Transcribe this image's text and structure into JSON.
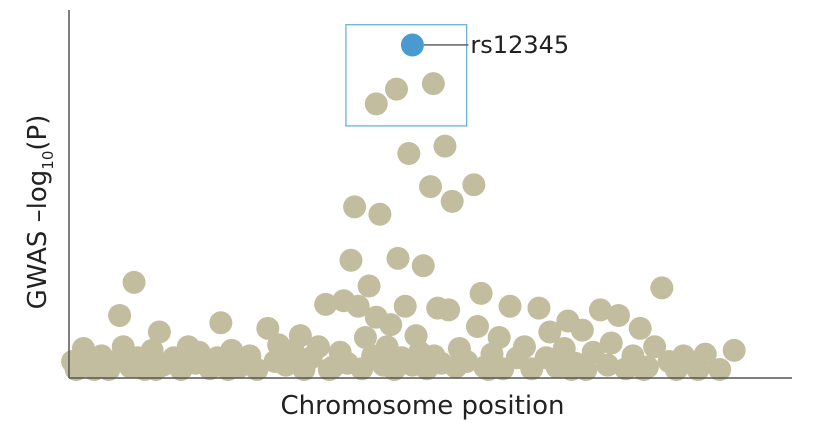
{
  "chart_data": {
    "type": "scatter",
    "xlabel": "Chromosome position",
    "ylabel": {
      "prefix": "GWAS –log",
      "subscript": "10",
      "suffix": "(P)"
    },
    "xlim": [
      0,
      100
    ],
    "ylim": [
      0,
      10
    ],
    "grid": false,
    "colors": {
      "points": "#c2bd9f",
      "highlight": "#4a9ad2",
      "box": "#6ab2d6",
      "axis": "#555555"
    },
    "highlight": {
      "label": "rs12345",
      "x": 47.5,
      "y": 9.05
    },
    "highlight_box": {
      "x0": 38.3,
      "x1": 55.0,
      "y0": 6.85,
      "y1": 9.6
    },
    "points": [
      {
        "x": 1,
        "y": 0.2
      },
      {
        "x": 2,
        "y": 0.8
      },
      {
        "x": 3,
        "y": 0.35
      },
      {
        "x": 4.5,
        "y": 0.6
      },
      {
        "x": 5.5,
        "y": 0.15
      },
      {
        "x": 6.5,
        "y": 0.45
      },
      {
        "x": 7,
        "y": 1.7
      },
      {
        "x": 7.5,
        "y": 0.85
      },
      {
        "x": 8.5,
        "y": 0.3
      },
      {
        "x": 9,
        "y": 2.6
      },
      {
        "x": 9.5,
        "y": 0.55
      },
      {
        "x": 10.5,
        "y": 0.2
      },
      {
        "x": 11.5,
        "y": 0.75
      },
      {
        "x": 12.5,
        "y": 1.25
      },
      {
        "x": 13,
        "y": 0.35
      },
      {
        "x": 14.5,
        "y": 0.55
      },
      {
        "x": 15.5,
        "y": 0.2
      },
      {
        "x": 16.5,
        "y": 0.85
      },
      {
        "x": 17.5,
        "y": 0.4
      },
      {
        "x": 18,
        "y": 0.7
      },
      {
        "x": 19.5,
        "y": 0.25
      },
      {
        "x": 20.5,
        "y": 0.55
      },
      {
        "x": 21,
        "y": 1.5
      },
      {
        "x": 22.5,
        "y": 0.75
      },
      {
        "x": 23.5,
        "y": 0.3
      },
      {
        "x": 25,
        "y": 0.6
      },
      {
        "x": 26,
        "y": 0.2
      },
      {
        "x": 27.5,
        "y": 1.35
      },
      {
        "x": 28.5,
        "y": 0.45
      },
      {
        "x": 29,
        "y": 0.9
      },
      {
        "x": 30,
        "y": 0.35
      },
      {
        "x": 31,
        "y": 0.75
      },
      {
        "x": 32,
        "y": 1.15
      },
      {
        "x": 32.5,
        "y": 0.2
      },
      {
        "x": 33.5,
        "y": 0.55
      },
      {
        "x": 34.5,
        "y": 0.85
      },
      {
        "x": 35.5,
        "y": 2.0
      },
      {
        "x": 36.5,
        "y": 0.3
      },
      {
        "x": 37.5,
        "y": 0.7
      },
      {
        "x": 38,
        "y": 2.1
      },
      {
        "x": 38.5,
        "y": 0.4
      },
      {
        "x": 39,
        "y": 3.2
      },
      {
        "x": 39.5,
        "y": 4.65
      },
      {
        "x": 40,
        "y": 1.95
      },
      {
        "x": 40.5,
        "y": 0.25
      },
      {
        "x": 41,
        "y": 1.1
      },
      {
        "x": 41.5,
        "y": 2.5
      },
      {
        "x": 42,
        "y": 0.6
      },
      {
        "x": 42.5,
        "y": 1.65
      },
      {
        "x": 43,
        "y": 4.45
      },
      {
        "x": 43.5,
        "y": 0.35
      },
      {
        "x": 44,
        "y": 0.85
      },
      {
        "x": 44.5,
        "y": 1.45
      },
      {
        "x": 45,
        "y": 0.2
      },
      {
        "x": 45.5,
        "y": 3.25
      },
      {
        "x": 46,
        "y": 0.55
      },
      {
        "x": 46.5,
        "y": 1.95
      },
      {
        "x": 47,
        "y": 6.1
      },
      {
        "x": 47.5,
        "y": 0.35
      },
      {
        "x": 48,
        "y": 1.15
      },
      {
        "x": 48.5,
        "y": 0.7
      },
      {
        "x": 49,
        "y": 3.05
      },
      {
        "x": 49.5,
        "y": 0.25
      },
      {
        "x": 50,
        "y": 5.2
      },
      {
        "x": 50.5,
        "y": 0.6
      },
      {
        "x": 51,
        "y": 1.9
      },
      {
        "x": 51.5,
        "y": 0.4
      },
      {
        "x": 52,
        "y": 6.3
      },
      {
        "x": 52.5,
        "y": 1.85
      },
      {
        "x": 53,
        "y": 4.8
      },
      {
        "x": 53.5,
        "y": 0.3
      },
      {
        "x": 54,
        "y": 0.8
      },
      {
        "x": 55,
        "y": 0.45
      },
      {
        "x": 56,
        "y": 5.25
      },
      {
        "x": 56.5,
        "y": 1.4
      },
      {
        "x": 57,
        "y": 2.3
      },
      {
        "x": 57.5,
        "y": 0.3
      },
      {
        "x": 58.5,
        "y": 0.65
      },
      {
        "x": 59.5,
        "y": 1.1
      },
      {
        "x": 60,
        "y": 0.25
      },
      {
        "x": 61,
        "y": 1.95
      },
      {
        "x": 62,
        "y": 0.55
      },
      {
        "x": 63,
        "y": 0.85
      },
      {
        "x": 64,
        "y": 0.25
      },
      {
        "x": 65,
        "y": 1.9
      },
      {
        "x": 66,
        "y": 0.55
      },
      {
        "x": 66.5,
        "y": 1.25
      },
      {
        "x": 67.5,
        "y": 0.3
      },
      {
        "x": 68.5,
        "y": 0.8
      },
      {
        "x": 69,
        "y": 1.55
      },
      {
        "x": 70,
        "y": 0.4
      },
      {
        "x": 71,
        "y": 1.3
      },
      {
        "x": 71.5,
        "y": 0.2
      },
      {
        "x": 72.5,
        "y": 0.7
      },
      {
        "x": 73.5,
        "y": 1.85
      },
      {
        "x": 74.5,
        "y": 0.35
      },
      {
        "x": 75,
        "y": 0.95
      },
      {
        "x": 76,
        "y": 1.7
      },
      {
        "x": 77,
        "y": 0.25
      },
      {
        "x": 78,
        "y": 0.6
      },
      {
        "x": 79,
        "y": 1.35
      },
      {
        "x": 80,
        "y": 0.3
      },
      {
        "x": 81,
        "y": 0.85
      },
      {
        "x": 82,
        "y": 2.45
      },
      {
        "x": 83,
        "y": 0.45
      },
      {
        "x": 84,
        "y": 0.2
      },
      {
        "x": 85,
        "y": 0.6
      },
      {
        "x": 86.5,
        "y": 0.35
      },
      {
        "x": 88,
        "y": 0.65
      },
      {
        "x": 90,
        "y": 0.2
      },
      {
        "x": 92,
        "y": 0.75
      },
      {
        "x": 3.5,
        "y": 0.1
      },
      {
        "x": 12,
        "y": 0.1
      },
      {
        "x": 22,
        "y": 0.1
      },
      {
        "x": 36,
        "y": 0.1
      },
      {
        "x": 58,
        "y": 0.1
      },
      {
        "x": 69.5,
        "y": 0.1
      },
      {
        "x": 79.5,
        "y": 0.1
      },
      {
        "x": 87,
        "y": 0.1
      },
      {
        "x": 0.5,
        "y": 0.45
      }
    ],
    "top_points": [
      {
        "x": 42.5,
        "y": 7.45
      },
      {
        "x": 45.3,
        "y": 7.85
      },
      {
        "x": 50.4,
        "y": 8.0
      }
    ]
  }
}
